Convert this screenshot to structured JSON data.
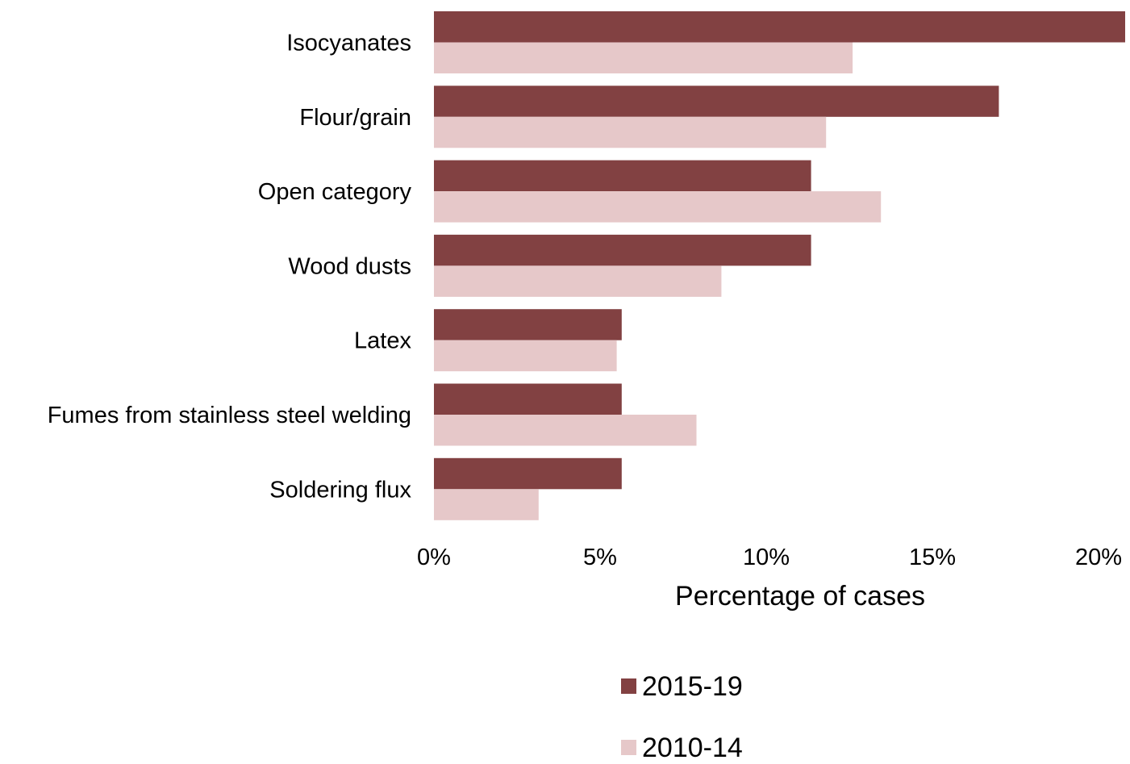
{
  "chart_data": {
    "type": "bar",
    "orientation": "horizontal",
    "categories": [
      "Isocyanates",
      "Flour/grain",
      "Open category",
      "Wood dusts",
      "Latex",
      "Fumes from stainless steel welding",
      "Soldering flux"
    ],
    "series": [
      {
        "name": "2015-19",
        "color": "#824142",
        "values": [
          20.8,
          17.0,
          11.35,
          11.35,
          5.65,
          5.65,
          5.65
        ]
      },
      {
        "name": "2010-14",
        "color": "#e6c8c9",
        "values": [
          12.6,
          11.8,
          13.45,
          8.65,
          5.5,
          7.9,
          3.15
        ]
      }
    ],
    "xlabel": "Percentage of cases",
    "ylabel": "",
    "xlim": [
      0,
      20.8
    ],
    "xticks": [
      0,
      5,
      10,
      15,
      20
    ],
    "xtick_labels": [
      "0%",
      "5%",
      "10%",
      "15%",
      "20%"
    ],
    "grid": false,
    "legend_placement": "bottom"
  }
}
